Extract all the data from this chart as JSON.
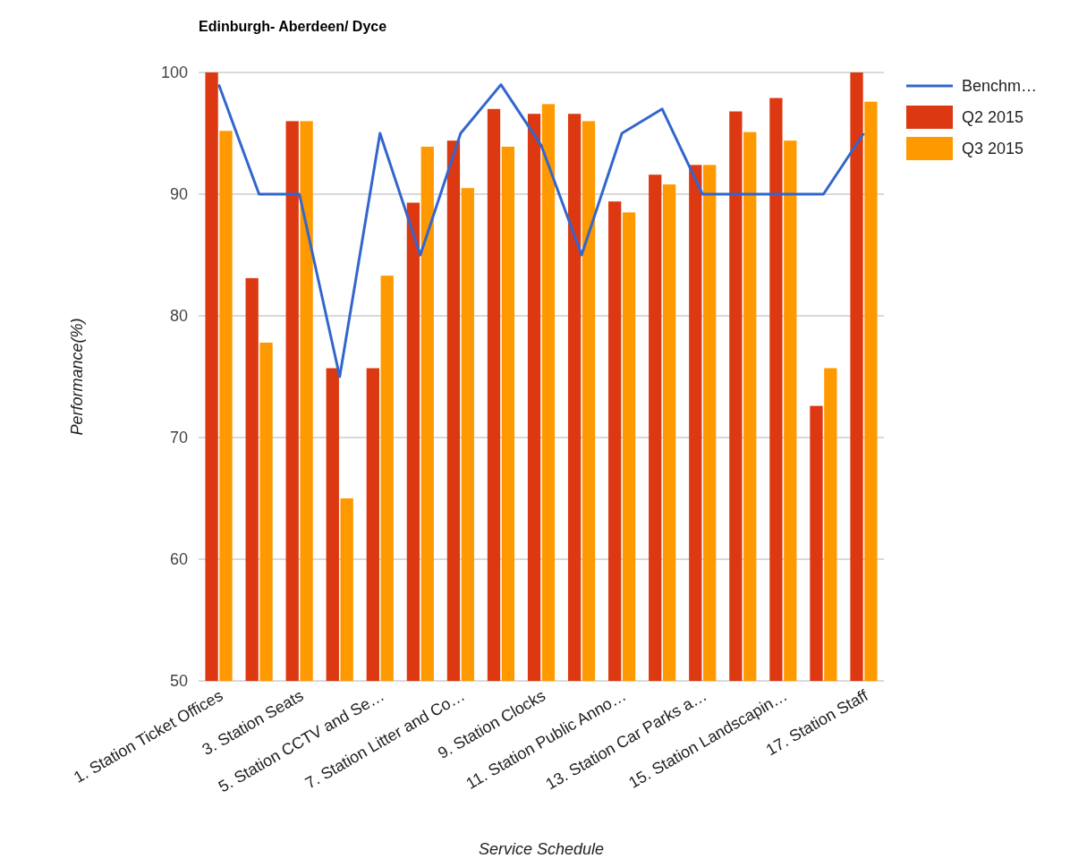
{
  "chart_data": {
    "type": "bar",
    "title": "Edinburgh- Aberdeen/ Dyce",
    "xlabel": "Service Schedule",
    "ylabel": "Performance(%)",
    "categories": [
      "1. Station Ticket Offices",
      null,
      "3. Station Seats",
      null,
      "5. Station CCTV and Se…",
      null,
      "7. Station Litter and Co…",
      null,
      "9. Station Clocks",
      null,
      "11. Station Public Anno…",
      null,
      "13. Station Car Parks a…",
      null,
      "15. Station Landscapin…",
      null,
      "17. Station Staff"
    ],
    "series": [
      {
        "name": "Benchm…",
        "type": "line",
        "color": "#3366cc",
        "values": [
          99,
          90,
          90,
          75,
          95,
          85,
          95,
          99,
          94,
          85,
          95,
          97,
          90,
          90,
          90,
          90,
          95
        ]
      },
      {
        "name": "Q2 2015",
        "color": "#dc3912",
        "values": [
          100,
          83.1,
          96,
          75.7,
          75.7,
          89.3,
          94.4,
          97,
          96.6,
          96.6,
          89.4,
          91.6,
          92.4,
          96.8,
          97.9,
          72.6,
          100
        ]
      },
      {
        "name": "Q3 2015",
        "color": "#ff9900",
        "values": [
          95.2,
          77.8,
          96,
          65,
          83.3,
          93.9,
          90.5,
          93.9,
          97.4,
          96,
          88.5,
          90.8,
          92.4,
          95.1,
          94.4,
          75.7,
          97.6
        ]
      }
    ],
    "ylim": [
      50,
      100
    ],
    "yticks": [
      50,
      60,
      70,
      80,
      90,
      100
    ],
    "grid": "y",
    "legend": "right"
  }
}
